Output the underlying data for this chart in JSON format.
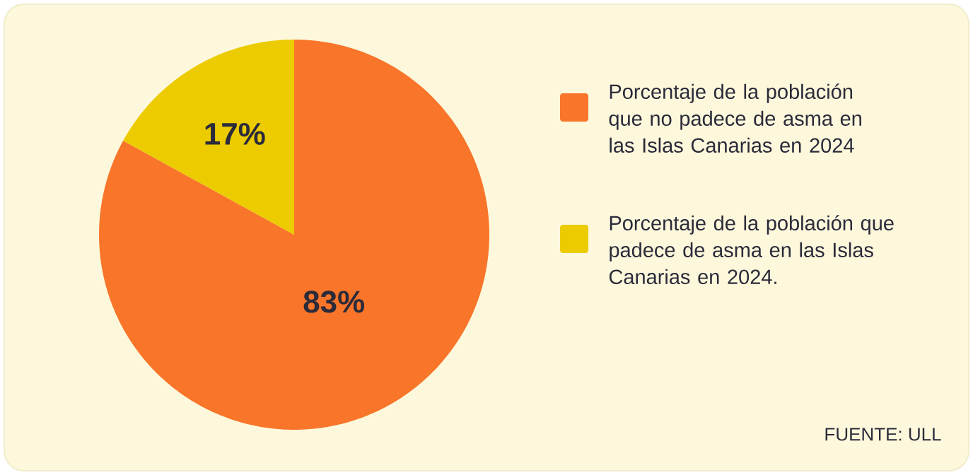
{
  "chart_data": {
    "type": "pie",
    "categories": [
      "Porcentaje de la población que no padece de asma en las Islas Canarias en 2024",
      "Porcentaje de la población que padece de asma en las Islas Canarias en 2024."
    ],
    "values": [
      83,
      17
    ],
    "colors": [
      "#f97529",
      "#eccb00"
    ],
    "value_labels": [
      "83%",
      "17%"
    ],
    "legend": "right",
    "annotations": [
      "FUENTE: ULL"
    ]
  }
}
